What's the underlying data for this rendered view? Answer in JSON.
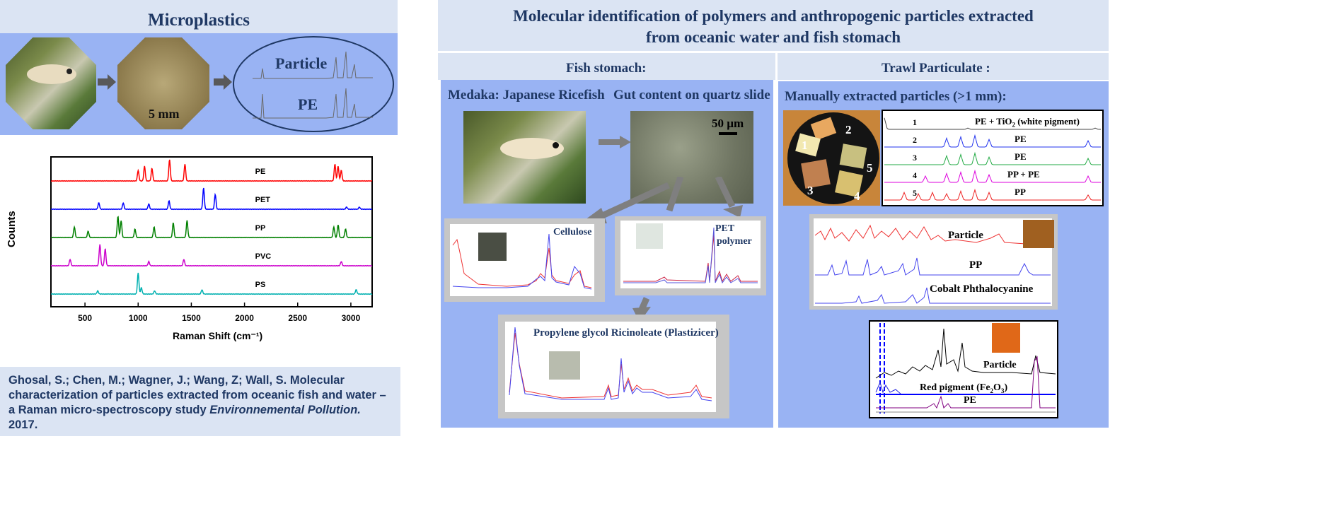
{
  "microplastics": {
    "title": "Microplastics",
    "scale_label": "5 mm",
    "oval_particle": "Particle",
    "oval_pe": "PE"
  },
  "raman_chart": {
    "ylabel": "Counts",
    "xlabel": "Raman Shift (cm⁻¹)"
  },
  "chart_data": {
    "type": "line",
    "xlabel": "Raman Shift (cm-1)",
    "ylabel": "Counts",
    "xlim": [
      180,
      3200
    ],
    "x_ticks": [
      500,
      1000,
      1500,
      2000,
      2500,
      3000
    ],
    "y_ticks": "none",
    "series": [
      {
        "name": "PE",
        "color": "#ff0000",
        "peaks": [
          [
            1000,
            0.5
          ],
          [
            1060,
            0.7
          ],
          [
            1130,
            0.6
          ],
          [
            1295,
            1.0
          ],
          [
            1440,
            0.8
          ],
          [
            2850,
            0.8
          ],
          [
            2880,
            0.7
          ],
          [
            2910,
            0.5
          ]
        ]
      },
      {
        "name": "PET",
        "color": "#0000ff",
        "peaks": [
          [
            630,
            0.3
          ],
          [
            860,
            0.3
          ],
          [
            1100,
            0.25
          ],
          [
            1290,
            0.4
          ],
          [
            1615,
            1.0
          ],
          [
            1725,
            0.7
          ],
          [
            2960,
            0.1
          ],
          [
            3080,
            0.1
          ]
        ]
      },
      {
        "name": "PP",
        "color": "#008000",
        "peaks": [
          [
            400,
            0.5
          ],
          [
            530,
            0.3
          ],
          [
            810,
            1.0
          ],
          [
            840,
            0.8
          ],
          [
            970,
            0.4
          ],
          [
            1150,
            0.5
          ],
          [
            1330,
            0.7
          ],
          [
            1460,
            0.8
          ],
          [
            2840,
            0.5
          ],
          [
            2880,
            0.6
          ],
          [
            2950,
            0.4
          ]
        ]
      },
      {
        "name": "PVC",
        "color": "#cc00cc",
        "peaks": [
          [
            360,
            0.3
          ],
          [
            640,
            1.0
          ],
          [
            690,
            0.8
          ],
          [
            1100,
            0.2
          ],
          [
            1430,
            0.3
          ],
          [
            2910,
            0.2
          ]
        ]
      },
      {
        "name": "PS",
        "color": "#00b0b0",
        "peaks": [
          [
            620,
            0.15
          ],
          [
            1000,
            1.0
          ],
          [
            1030,
            0.3
          ],
          [
            1155,
            0.15
          ],
          [
            1600,
            0.2
          ],
          [
            3050,
            0.2
          ]
        ]
      }
    ]
  },
  "citation": {
    "authors": "Ghosal, S.; Chen, M.; Wagner, J.; Wang, Z; Wall, S. Molecular characterization of particles extracted from oceanic fish and water – a Raman micro-spectroscopy study ",
    "journal": "Environnemental Pollution.",
    "year": " 2017."
  },
  "main": {
    "title_line1": "Molecular identification of polymers and anthropogenic particles extracted",
    "title_line2": "from oceanic water and fish stomach"
  },
  "fish": {
    "header": "Fish stomach:",
    "medaka_label": "Medaka: Japanese Ricefish",
    "gut_label": "Gut content on quartz slide",
    "scale_label": "50 µm",
    "cellulose_label": "Cellulose",
    "pet_label_1": "PET",
    "pet_label_2": "polymer",
    "plasticizer_label": "Propylene glycol Ricinoleate (Plastizicer)"
  },
  "trawl": {
    "header": "Trawl Particulate :",
    "manual_label": "Manually extracted particles (>1 mm):",
    "particle_numbers": [
      "1",
      "2",
      "3",
      "4",
      "5"
    ],
    "spectra": [
      {
        "num": "1",
        "label": "PE + TiO",
        "sub": "2",
        "suffix": " (white pigment)",
        "color": "#444444"
      },
      {
        "num": "2",
        "label": "PE",
        "sub": "",
        "suffix": "",
        "color": "#2233ee"
      },
      {
        "num": "3",
        "label": "PE",
        "sub": "",
        "suffix": "",
        "color": "#22aa44"
      },
      {
        "num": "4",
        "label": "PP + PE",
        "sub": "",
        "suffix": "",
        "color": "#dd00dd"
      },
      {
        "num": "5",
        "label": "PP",
        "sub": "",
        "suffix": "",
        "color": "#ee2222"
      }
    ],
    "match_particle": "Particle",
    "match_pp": "PP",
    "match_cobalt": "Cobalt Phthalocyanine",
    "pigment_particle": "Particle",
    "pigment_red_prefix": "Red pigment (Fe",
    "pigment_red_sub1": "2",
    "pigment_red_mid": "O",
    "pigment_red_sub2": "3",
    "pigment_red_suffix": ")",
    "pigment_pe": "PE"
  },
  "colors": {
    "header_bg": "#dbe4f3",
    "panel_blue": "#99b3f3",
    "title_text": "#1f3864"
  }
}
